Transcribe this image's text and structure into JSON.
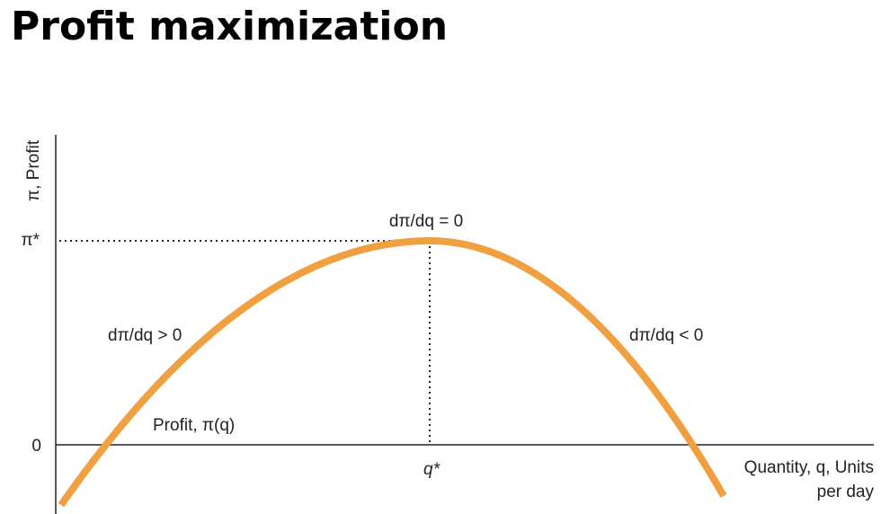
{
  "header": {
    "title": "Profit maximization"
  },
  "diagram": {
    "y_axis_label": "π, Profit",
    "y_mark_top": "π*",
    "y_mark_zero": "0",
    "x_mark": "q*",
    "x_axis_label": [
      "Quantity, q, Units",
      "per day"
    ],
    "peak_label": "dπ/dq = 0",
    "rising_label": "dπ/dq > 0",
    "falling_label": "dπ/dq < 0",
    "curve_label": "Profit, π(q)"
  }
}
